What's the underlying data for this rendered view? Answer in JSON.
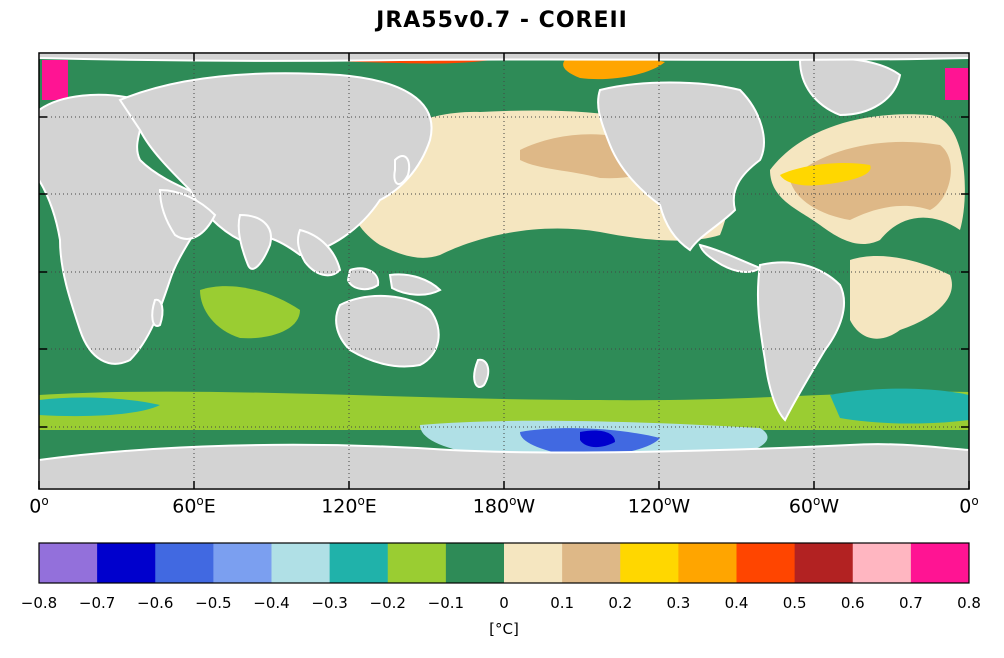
{
  "title": "JRA55v0.7 - COREII",
  "map": {
    "projection": "equirectangular",
    "lon_range": [
      0,
      360
    ],
    "lat_range": [
      -78,
      90
    ],
    "grid": "dotted",
    "land_color": "#d3d3d3",
    "no_data_color": "#ffffff",
    "x_ticks": [
      {
        "deg": "0",
        "suffix": ""
      },
      {
        "deg": "60",
        "suffix": "E"
      },
      {
        "deg": "120",
        "suffix": "E"
      },
      {
        "deg": "180",
        "suffix": "W"
      },
      {
        "deg": "120",
        "suffix": "W"
      },
      {
        "deg": "60",
        "suffix": "W"
      },
      {
        "deg": "0",
        "suffix": ""
      }
    ],
    "degree_mark": "o"
  },
  "colorbar": {
    "ticks": [
      "-0.8",
      "-0.7",
      "-0.6",
      "-0.5",
      "-0.4",
      "-0.3",
      "-0.2",
      "-0.1",
      "0",
      "0.1",
      "0.2",
      "0.3",
      "0.4",
      "0.5",
      "0.6",
      "0.7",
      "0.8"
    ],
    "colors": [
      "#9370db",
      "#0000cd",
      "#4169e1",
      "#7b9ff0",
      "#b0e0e6",
      "#20b2aa",
      "#9acd32",
      "#2e8b57",
      "#f5e6c0",
      "#deb887",
      "#ffd700",
      "#ffa500",
      "#ff4500",
      "#b22222",
      "#ffb6c1",
      "#ff1493"
    ],
    "unit": "[°C]"
  }
}
